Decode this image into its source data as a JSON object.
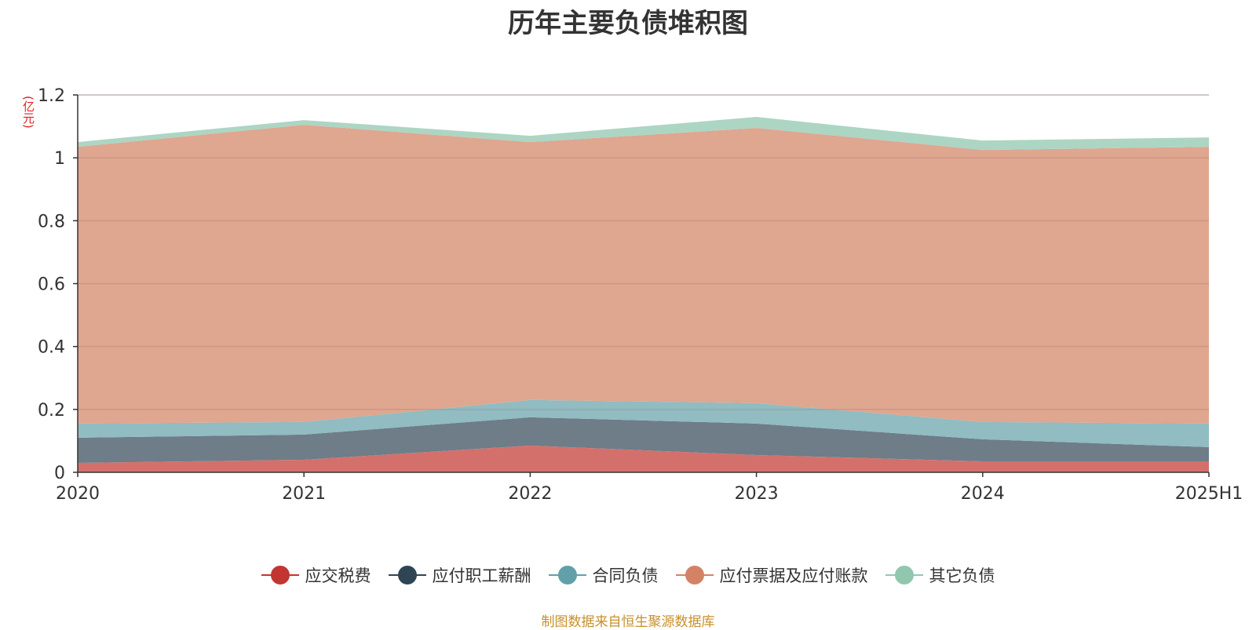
{
  "chart_data": {
    "type": "area",
    "stacked": true,
    "title": "历年主要负债堆积图",
    "y_unit": "(亿元)",
    "x": [
      "2020",
      "2021",
      "2022",
      "2023",
      "2024",
      "2025H1"
    ],
    "ylim": [
      0,
      1.2
    ],
    "yticks": [
      0,
      0.2,
      0.4,
      0.6,
      0.8,
      1,
      1.2
    ],
    "ytick_labels": [
      "0",
      "0.2",
      "0.4",
      "0.6",
      "0.8",
      "1",
      "1.2"
    ],
    "grid": true,
    "legend_position": "bottom",
    "series": [
      {
        "name": "应交税费",
        "values": [
          0.03,
          0.04,
          0.085,
          0.055,
          0.035,
          0.035
        ],
        "color": "#c23531",
        "fill": "#d4706c"
      },
      {
        "name": "应付职工薪酬",
        "values": [
          0.08,
          0.08,
          0.09,
          0.1,
          0.07,
          0.045
        ],
        "color": "#2f4554",
        "fill": "#6e7d87"
      },
      {
        "name": "合同负债",
        "values": [
          0.045,
          0.04,
          0.055,
          0.065,
          0.055,
          0.075
        ],
        "color": "#61a0a8",
        "fill": "#90bcc2"
      },
      {
        "name": "应付票据及应付账款",
        "values": [
          0.88,
          0.945,
          0.82,
          0.875,
          0.865,
          0.88
        ],
        "color": "#d48265",
        "fill": "#dfa690"
      },
      {
        "name": "其它负债",
        "values": [
          0.015,
          0.015,
          0.02,
          0.035,
          0.03,
          0.03
        ],
        "color": "#91c7ae",
        "fill": "#add5c3"
      }
    ]
  },
  "source_note": "制图数据来自恒生聚源数据库"
}
